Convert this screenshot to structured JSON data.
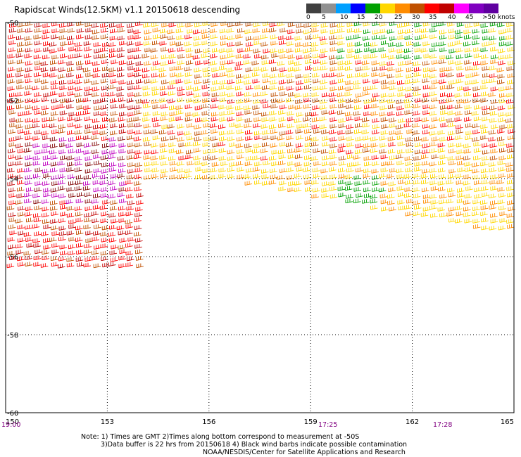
{
  "title": "Rapidscat Winds(12.5KM) v1.1 20150618 descending",
  "scale": {
    "labels": [
      "0",
      "5",
      "10",
      "15",
      "20",
      "25",
      "30",
      "35",
      "40",
      "45",
      ">50 knots"
    ],
    "colors": [
      "#404040",
      "#909090",
      "#00a0ff",
      "#0000ff",
      "#00a000",
      "#ffd700",
      "#ff8c00",
      "#c05000",
      "#ff0000",
      "#c00000",
      "#ff00ff",
      "#8000c0",
      "#6000a0"
    ]
  },
  "axes": {
    "lon_ticks": [
      "150",
      "153",
      "156",
      "159",
      "162",
      "165"
    ],
    "lat_ticks": [
      "-50",
      "-52",
      "-54",
      "-56",
      "-58",
      "-60"
    ]
  },
  "times": [
    "19:00",
    "17:25",
    "17:28"
  ],
  "notes": {
    "line1": "Note: 1) Times are GMT 2)Times along bottom correspond to measurement at -50S",
    "line2": "3)Data buffer is 22 hrs from 20150618 4) Black wind barbs indicate possible contamination",
    "line3": "NOAA/NESDIS/Center for Satellite Applications and Research"
  }
}
